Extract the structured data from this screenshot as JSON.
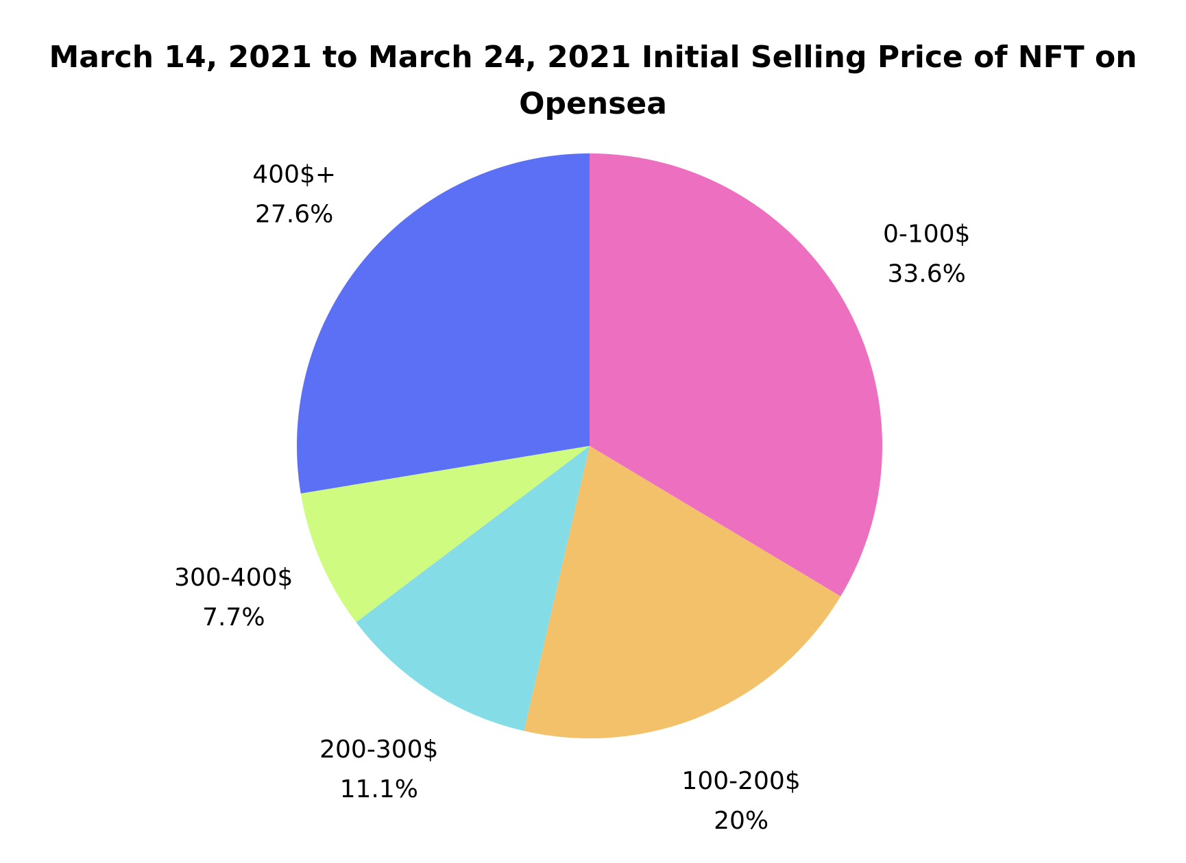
{
  "chart_data": {
    "type": "pie",
    "title": "March 14, 2021 to March 24, 2021 Initial Selling Price of NFT on Opensea",
    "slices": [
      {
        "label": "0-100$",
        "value": 33.6,
        "value_label": "33.6%",
        "color": "#ED6FBF"
      },
      {
        "label": "100-200$",
        "value": 20.0,
        "value_label": "20%",
        "color": "#F4C16B"
      },
      {
        "label": "200-300$",
        "value": 11.1,
        "value_label": "11.1%",
        "color": "#84DDE6"
      },
      {
        "label": "300-400$",
        "value": 7.7,
        "value_label": "7.7%",
        "color": "#CFFC80"
      },
      {
        "label": "400$+",
        "value": 27.6,
        "value_label": "27.6%",
        "color": "#5C70F5"
      }
    ],
    "start_angle": "12 o'clock",
    "direction": "clockwise",
    "legend": "none",
    "labels": "outside"
  }
}
